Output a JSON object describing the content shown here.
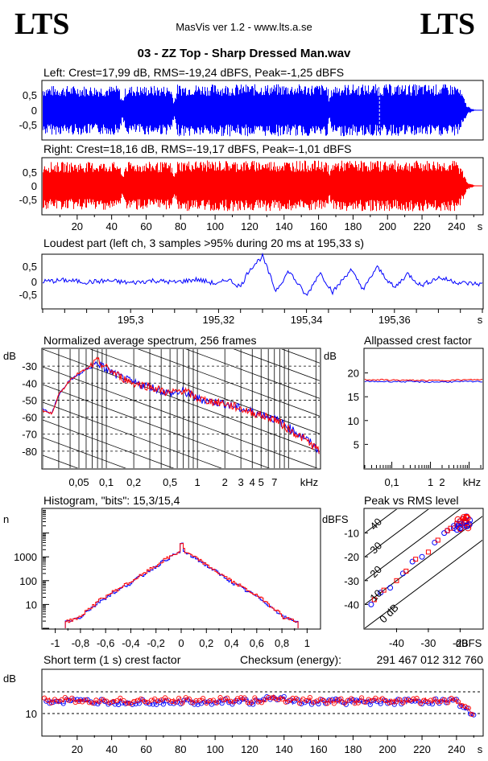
{
  "header": {
    "logo_left": "LTS",
    "logo_right": "LTS",
    "app": "MasVis ver 1.2 - www.lts.a.se",
    "file_title": "03 - ZZ Top - Sharp Dressed Man.wav"
  },
  "colors": {
    "left": "#0000ff",
    "right": "#ff0000",
    "grid": "#000000"
  },
  "chart_data": [
    {
      "id": "left_waveform",
      "type": "area",
      "title": "Left: Crest=17,99 dB, RMS=-19,24 dBFS, Peak=-1,25 dBFS",
      "xlim": [
        0,
        255
      ],
      "ylim": [
        -1,
        1
      ],
      "yticks": [
        "0,5",
        "0",
        "-0,5"
      ],
      "series": [
        {
          "envelope_x": [
            0,
            2,
            44,
            46,
            48,
            74,
            76,
            78,
            165,
            166,
            168,
            240,
            243,
            246,
            250,
            255
          ],
          "envelope_amp": [
            0.85,
            0.85,
            0.85,
            0.35,
            0.85,
            0.85,
            0.35,
            0.9,
            0.9,
            0.4,
            0.9,
            0.9,
            0.6,
            0.15,
            0.02,
            0.0
          ]
        }
      ],
      "annotations": [
        {
          "type": "dashed_vline",
          "x": 195.33
        }
      ]
    },
    {
      "id": "right_waveform",
      "type": "area",
      "title": "Right: Crest=18,16 dB, RMS=-19,17 dBFS, Peak=-1,01 dBFS",
      "xlim": [
        0,
        255
      ],
      "ylim": [
        -1,
        1
      ],
      "yticks": [
        "0,5",
        "0",
        "-0,5"
      ],
      "xticks": [
        "20",
        "40",
        "60",
        "80",
        "100",
        "120",
        "140",
        "160",
        "180",
        "200",
        "220",
        "240"
      ],
      "xunit": "s",
      "series": [
        {
          "envelope_x": [
            0,
            2,
            44,
            46,
            48,
            74,
            76,
            78,
            165,
            166,
            168,
            240,
            243,
            246,
            250,
            255
          ],
          "envelope_amp": [
            0.85,
            0.85,
            0.85,
            0.35,
            0.85,
            0.85,
            0.35,
            0.9,
            0.9,
            0.4,
            0.9,
            0.9,
            0.6,
            0.15,
            0.02,
            0.0
          ]
        }
      ]
    },
    {
      "id": "loudest_part",
      "type": "line",
      "title": "Loudest part (left  ch, 3 samples >95% during 20 ms at 195,33 s)",
      "xlim": [
        195.28,
        195.38
      ],
      "ylim": [
        -1,
        1
      ],
      "yticks": [
        "0,5",
        "0",
        "-0,5"
      ],
      "xticks": [
        "195,3",
        "195,32",
        "195,34",
        "195,36"
      ],
      "xunit": "s",
      "series": [
        {
          "name": "",
          "x": [
            195.28,
            195.285,
            195.29,
            195.295,
            195.3,
            195.305,
            195.31,
            195.315,
            195.32,
            195.322,
            195.325,
            195.327,
            195.33,
            195.333,
            195.336,
            195.34,
            195.343,
            195.346,
            195.35,
            195.353,
            195.356,
            195.36,
            195.363,
            195.366,
            195.37,
            195.375,
            195.38
          ],
          "y": [
            0.0,
            0.05,
            -0.02,
            0.03,
            -0.05,
            0.04,
            -0.03,
            0.08,
            -0.1,
            0.1,
            -0.2,
            0.45,
            0.95,
            -0.35,
            0.4,
            -0.55,
            0.35,
            -0.4,
            0.45,
            -0.3,
            0.55,
            -0.25,
            0.3,
            -0.15,
            0.15,
            -0.05,
            -0.1
          ]
        }
      ]
    },
    {
      "id": "avg_spectrum",
      "type": "line",
      "title": "Normalized average spectrum, 256 frames",
      "ylabel": "dB",
      "xunit": "kHz",
      "xscale": "log",
      "xlim": [
        0.02,
        22
      ],
      "ylim": [
        -90,
        -20
      ],
      "yticks": [
        "-30",
        "-40",
        "-50",
        "-60",
        "-70",
        "-80"
      ],
      "xticks": [
        "0,05",
        "0,1",
        "0,2",
        "0,5",
        "1",
        "2",
        "3",
        "4",
        "5",
        "7"
      ],
      "series": [
        {
          "name": "",
          "x": [
            0.02,
            0.025,
            0.03,
            0.04,
            0.05,
            0.06,
            0.08,
            0.1,
            0.15,
            0.2,
            0.3,
            0.5,
            0.7,
            1,
            1.5,
            2,
            3,
            5,
            7,
            10,
            15,
            22
          ],
          "y": [
            -55,
            -58,
            -47,
            -38,
            -35,
            -32,
            -28,
            -32,
            -37,
            -40,
            -42,
            -46,
            -45,
            -49,
            -51,
            -52,
            -55,
            -58,
            -61,
            -66,
            -72,
            -80
          ]
        },
        {
          "name": "",
          "x": [
            0.02,
            0.025,
            0.03,
            0.04,
            0.05,
            0.06,
            0.08,
            0.1,
            0.15,
            0.2,
            0.3,
            0.5,
            0.7,
            1,
            1.5,
            2,
            3,
            5,
            7,
            10,
            15,
            22
          ],
          "y": [
            -56,
            -58,
            -47,
            -38,
            -34,
            -32,
            -27,
            -31,
            -37,
            -40,
            -42,
            -46,
            -44,
            -49,
            -51,
            -52,
            -55,
            -59,
            -61,
            -67,
            -73,
            -80
          ]
        }
      ]
    },
    {
      "id": "allpassed_crest",
      "type": "line",
      "title": "Allpassed crest factor",
      "ylabel": "dB",
      "xunit": "kHz",
      "xscale": "log",
      "xlim": [
        0.02,
        22
      ],
      "ylim": [
        0,
        25
      ],
      "yticks": [
        "20",
        "15",
        "10",
        "5"
      ],
      "xticks": [
        "0,1",
        "1",
        "2"
      ],
      "series": [
        {
          "name": "",
          "x": [
            0.02,
            0.1,
            1,
            22
          ],
          "y": [
            18.2,
            18.2,
            18.1,
            18.2
          ]
        },
        {
          "name": "",
          "x": [
            0.02,
            0.1,
            1,
            22
          ],
          "y": [
            18.6,
            18.5,
            18.4,
            18.6
          ]
        }
      ]
    },
    {
      "id": "histogram",
      "type": "line",
      "title": "Histogram, \"bits\": 15,3/15,4",
      "ylabel": "n",
      "yscale": "log",
      "xlim": [
        -1.1,
        1.1
      ],
      "ylim": [
        1,
        100000
      ],
      "yticks": [
        "1000",
        "100",
        "10"
      ],
      "xticks": [
        "-1",
        "-0,8",
        "-0,6",
        "-0,4",
        "-0,2",
        "0",
        "0,2",
        "0,4",
        "0,6",
        "0,8",
        "1"
      ],
      "series": [
        {
          "name": "",
          "x": [
            -0.9,
            -0.8,
            -0.7,
            -0.6,
            -0.5,
            -0.4,
            -0.3,
            -0.2,
            -0.1,
            -0.02,
            0.0,
            0.02,
            0.1,
            0.2,
            0.3,
            0.4,
            0.5,
            0.6,
            0.7,
            0.8,
            0.9
          ],
          "y": [
            2,
            3,
            8,
            20,
            40,
            80,
            180,
            400,
            900,
            1500,
            3500,
            1500,
            900,
            400,
            180,
            80,
            40,
            20,
            8,
            3,
            2
          ]
        },
        {
          "name": "",
          "x": [
            -0.9,
            -0.8,
            -0.7,
            -0.6,
            -0.5,
            -0.4,
            -0.3,
            -0.2,
            -0.1,
            -0.02,
            0.0,
            0.02,
            0.1,
            0.2,
            0.3,
            0.4,
            0.5,
            0.6,
            0.7,
            0.8,
            0.9
          ],
          "y": [
            2,
            3,
            9,
            22,
            45,
            90,
            190,
            420,
            950,
            1600,
            3800,
            1600,
            950,
            420,
            190,
            90,
            45,
            22,
            9,
            3,
            2
          ]
        }
      ]
    },
    {
      "id": "peak_vs_rms",
      "type": "scatter",
      "title": "Peak vs RMS level",
      "ylabel": "dBFS",
      "xunit": "dBFS",
      "xlim": [
        -50,
        -13
      ],
      "ylim": [
        -50,
        0
      ],
      "yticks": [
        "-10",
        "-20",
        "-30",
        "-40"
      ],
      "xticks": [
        "-40",
        "-30",
        "-20"
      ],
      "diagonal_labels": [
        "40",
        "30",
        "20",
        "10",
        "0 dB"
      ],
      "series": [
        {
          "name": "",
          "x": [
            -48,
            -45,
            -42,
            -38,
            -35,
            -32,
            -28,
            -25,
            -22,
            -21,
            -20,
            -19,
            -18,
            -22,
            -24
          ],
          "y": [
            -40,
            -35,
            -33,
            -27,
            -22,
            -20,
            -14,
            -10,
            -8,
            -6,
            -5,
            -4,
            -3,
            -7,
            -9
          ]
        },
        {
          "name": "",
          "x": [
            -47,
            -44,
            -40,
            -37,
            -34,
            -30,
            -27,
            -24,
            -21,
            -20,
            -19,
            -18,
            -21,
            -23
          ],
          "y": [
            -38,
            -34,
            -30,
            -26,
            -21,
            -18,
            -13,
            -9,
            -7,
            -5,
            -4,
            -3,
            -6,
            -8
          ]
        }
      ]
    },
    {
      "id": "short_term_crest",
      "type": "scatter",
      "title": "Short term (1 s) crest factor",
      "ylabel": "dB",
      "xunit": "s",
      "xlim": [
        0,
        255
      ],
      "ylim": [
        0,
        30
      ],
      "yticks": [
        "10"
      ],
      "dashed_lines": [
        10,
        20
      ],
      "xticks": [
        "20",
        "40",
        "60",
        "80",
        "100",
        "120",
        "140",
        "160",
        "180",
        "200",
        "220",
        "240"
      ],
      "checksum_label": "Checksum (energy):",
      "checksum_value": "291 467 012 312 760",
      "series": [
        {
          "name": "",
          "base": 15.5,
          "end_drop": [
            240,
            255,
            9
          ]
        },
        {
          "name": "",
          "base": 16.0,
          "end_drop": [
            240,
            255,
            10
          ]
        }
      ]
    }
  ]
}
